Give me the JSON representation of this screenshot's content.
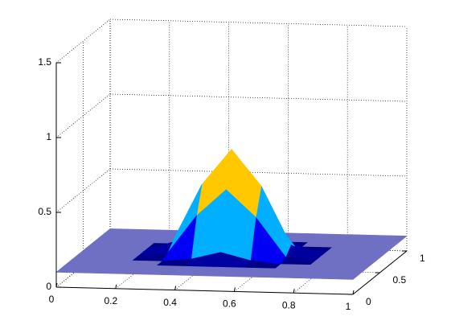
{
  "chart_data": {
    "type": "surface",
    "x": [
      0,
      0.1,
      0.2,
      0.3,
      0.4,
      0.5,
      0.6,
      0.7,
      0.8,
      0.9,
      1
    ],
    "y": [
      0,
      0.1,
      0.2,
      0.3,
      0.4,
      0.5,
      0.6,
      0.7,
      0.8,
      0.9,
      1
    ],
    "z": [
      [
        0.1,
        0.1,
        0.1,
        0.1,
        0.1,
        0.1,
        0.1,
        0.1,
        0.1,
        0.1,
        0.1
      ],
      [
        0.1,
        0.1,
        0.1,
        0.1,
        0.1,
        0.1,
        0.1,
        0.1,
        0.1,
        0.1,
        0.1
      ],
      [
        0.1,
        0.1,
        0.1,
        0.1,
        0.1,
        0.1,
        0.1,
        0.1,
        0.1,
        0.1,
        0.1
      ],
      [
        0.1,
        0.1,
        0.1,
        0.1,
        0.12,
        0.17,
        0.12,
        0.1,
        0.1,
        0.1,
        0.1
      ],
      [
        0.1,
        0.1,
        0.1,
        0.12,
        0.38,
        0.56,
        0.38,
        0.12,
        0.1,
        0.1,
        0.1
      ],
      [
        0.1,
        0.1,
        0.1,
        0.17,
        0.56,
        0.8,
        0.56,
        0.17,
        0.1,
        0.1,
        0.1
      ],
      [
        0.1,
        0.1,
        0.1,
        0.12,
        0.38,
        0.56,
        0.38,
        0.12,
        0.1,
        0.1,
        0.1
      ],
      [
        0.1,
        0.1,
        0.1,
        0.1,
        0.12,
        0.17,
        0.12,
        0.1,
        0.1,
        0.1,
        0.1
      ],
      [
        0.1,
        0.1,
        0.1,
        0.1,
        0.1,
        0.1,
        0.1,
        0.1,
        0.1,
        0.1,
        0.1
      ],
      [
        0.1,
        0.1,
        0.1,
        0.1,
        0.1,
        0.1,
        0.1,
        0.1,
        0.1,
        0.1,
        0.1
      ],
      [
        0.1,
        0.1,
        0.1,
        0.1,
        0.1,
        0.1,
        0.1,
        0.1,
        0.1,
        0.1,
        0.1
      ]
    ],
    "colormap": "jet",
    "base_color": "#6f6fc4",
    "xlim": [
      0,
      1
    ],
    "ylim": [
      0,
      1
    ],
    "zlim": [
      0,
      1.5
    ],
    "xticks": [
      0,
      0.2,
      0.4,
      0.6,
      0.8,
      1
    ],
    "yticks": [
      0,
      0.5,
      1
    ],
    "zticks": [
      0,
      0.5,
      1,
      1.5
    ],
    "grid": true
  }
}
